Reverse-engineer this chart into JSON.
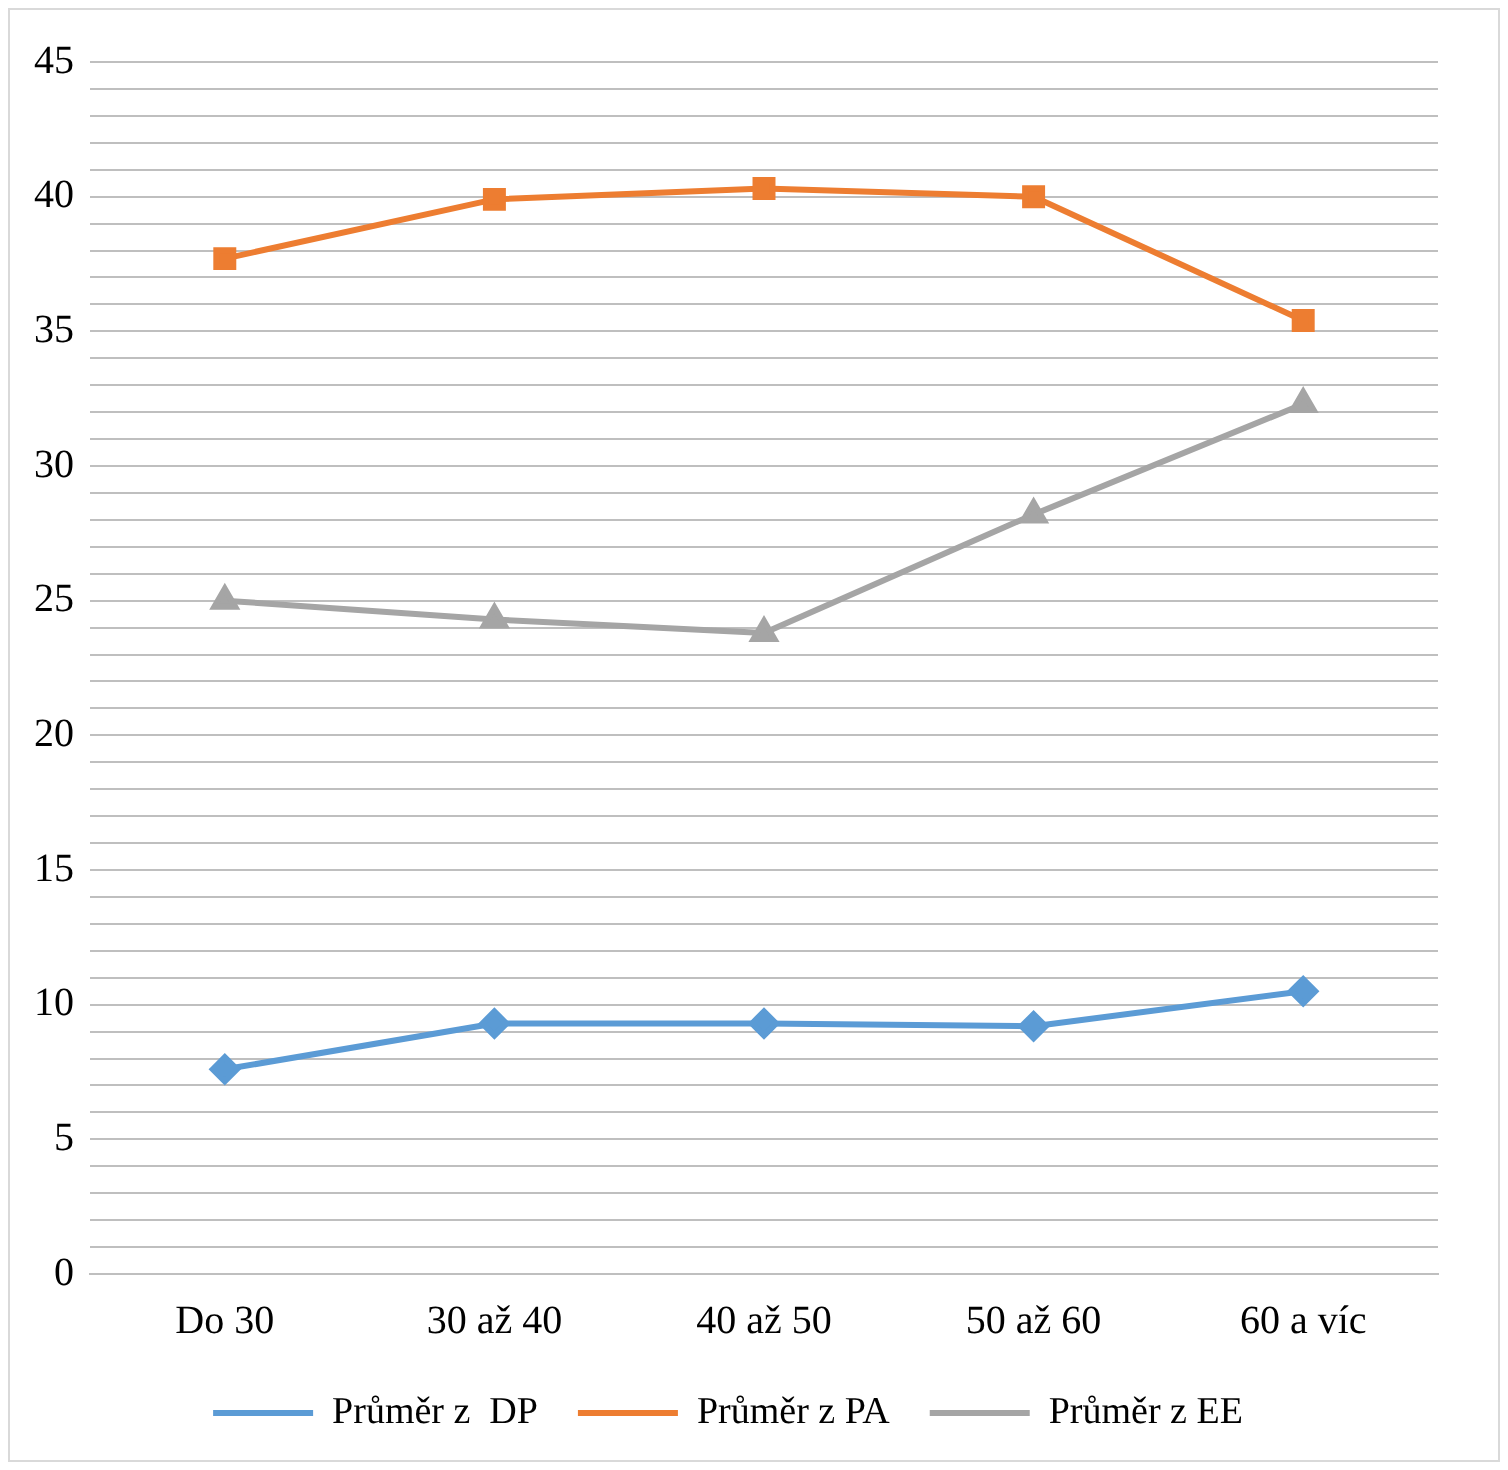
{
  "chart_data": {
    "type": "line",
    "categories": [
      "Do 30",
      "30 až 40",
      "40 až 50",
      "50 až 60",
      "60 a víc"
    ],
    "series": [
      {
        "name": "Průměr z  DP",
        "color": "#5b9bd5",
        "marker": "diamond",
        "values": [
          7.6,
          9.3,
          9.3,
          9.2,
          10.5
        ]
      },
      {
        "name": "Průměr z PA",
        "color": "#ed7d31",
        "marker": "square",
        "values": [
          37.7,
          39.9,
          40.3,
          40.0,
          35.4
        ]
      },
      {
        "name": "Průměr z EE",
        "color": "#a5a5a5",
        "marker": "triangle",
        "values": [
          25.0,
          24.3,
          23.8,
          28.2,
          32.3
        ]
      }
    ],
    "ylim": [
      0,
      45
    ],
    "yticks": [
      0,
      {
        "value": 1,
        "label": null
      },
      {
        "value": 2,
        "label": null
      },
      {
        "value": 3,
        "label": null
      },
      {
        "value": 4,
        "label": null
      },
      5,
      {
        "value": 6,
        "label": null
      },
      {
        "value": 7,
        "label": null
      },
      {
        "value": 8,
        "label": null
      },
      {
        "value": 9,
        "label": null
      },
      10,
      {
        "value": 11,
        "label": null
      },
      {
        "value": 12,
        "label": null
      },
      {
        "value": 13,
        "label": null
      },
      {
        "value": 14,
        "label": null
      },
      15,
      {
        "value": 16,
        "label": null
      },
      {
        "value": 17,
        "label": null
      },
      {
        "value": 18,
        "label": null
      },
      {
        "value": 19,
        "label": null
      },
      20,
      {
        "value": 21,
        "label": null
      },
      {
        "value": 22,
        "label": null
      },
      {
        "value": 23,
        "label": null
      },
      {
        "value": 24,
        "label": null
      },
      25,
      {
        "value": 26,
        "label": null
      },
      {
        "value": 27,
        "label": null
      },
      {
        "value": 28,
        "label": null
      },
      {
        "value": 29,
        "label": null
      },
      30,
      {
        "value": 31,
        "label": null
      },
      {
        "value": 32,
        "label": null
      },
      {
        "value": 33,
        "label": null
      },
      {
        "value": 34,
        "label": null
      },
      35,
      {
        "value": 36,
        "label": null
      },
      {
        "value": 37,
        "label": null
      },
      {
        "value": 38,
        "label": null
      },
      {
        "value": 39,
        "label": null
      },
      40,
      {
        "value": 41,
        "label": null
      },
      {
        "value": 42,
        "label": null
      },
      {
        "value": 43,
        "label": null
      },
      {
        "value": 44,
        "label": null
      },
      45
    ],
    "grid": "y",
    "legend": "bottom",
    "line_style": "solid"
  }
}
